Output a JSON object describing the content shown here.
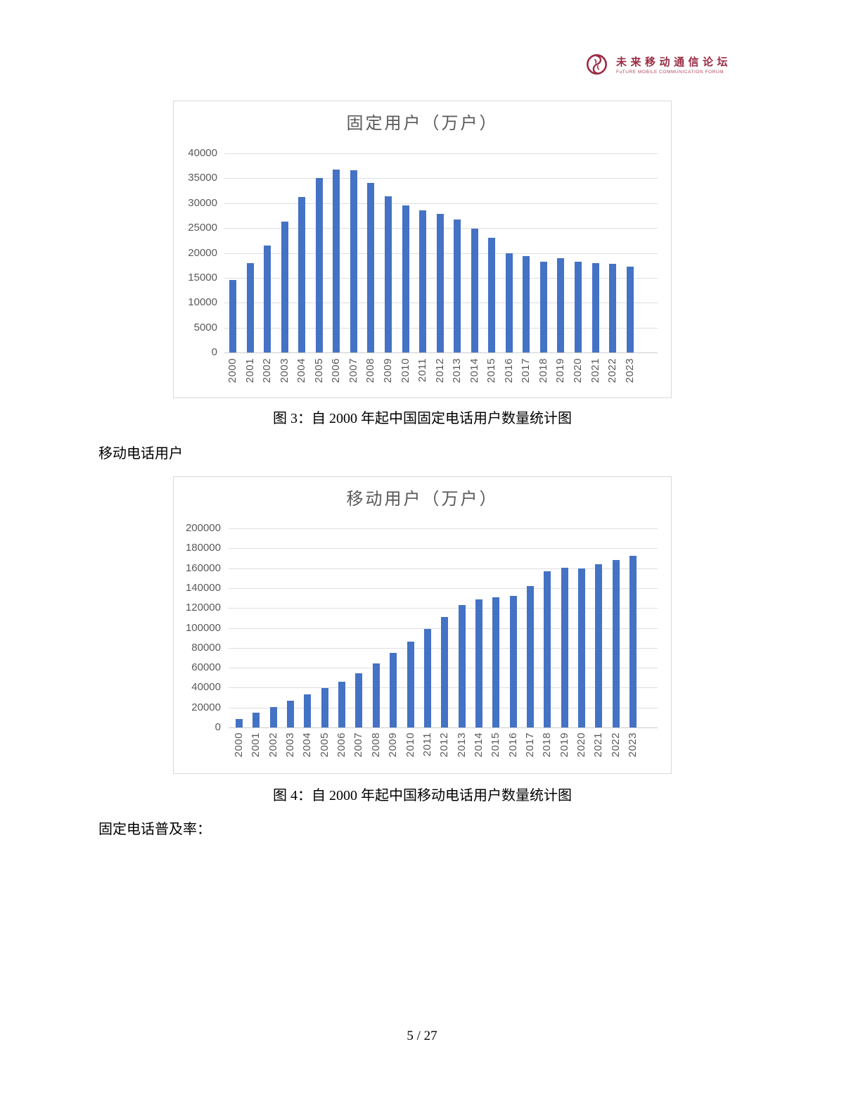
{
  "page": {
    "page_number": "5 / 27"
  },
  "header": {
    "logo": {
      "icon": "forum-logo-icon",
      "name_cn": "未来移动通信论坛",
      "name_en": "FuTURE MOBILE COMMUNICATION FORUM",
      "brand_color": "#9b2b43"
    }
  },
  "body": {
    "caption_fig3": "图 3：自 2000 年起中国固定电话用户数量统计图",
    "section_label_mobile": "移动电话用户",
    "caption_fig4": "图 4：自 2000 年起中国移动电话用户数量统计图",
    "section_label_fixed_rate": "固定电话普及率："
  },
  "chart_data": [
    {
      "type": "bar",
      "title": "固定用户（万户）",
      "xlabel": "",
      "ylabel": "",
      "categories": [
        "2000",
        "2001",
        "2002",
        "2003",
        "2004",
        "2005",
        "2006",
        "2007",
        "2008",
        "2009",
        "2010",
        "2011",
        "2012",
        "2013",
        "2014",
        "2015",
        "2016",
        "2017",
        "2018",
        "2019",
        "2020",
        "2021",
        "2022",
        "2023"
      ],
      "values": [
        14500,
        18000,
        21500,
        26300,
        31200,
        35000,
        36800,
        36600,
        34000,
        31400,
        29500,
        28500,
        27800,
        26700,
        24900,
        23100,
        20000,
        19400,
        18200,
        19000,
        18200,
        18000,
        17800,
        17300
      ],
      "ylim": [
        0,
        40000
      ],
      "yticks": [
        0,
        5000,
        10000,
        15000,
        20000,
        25000,
        30000,
        35000,
        40000
      ],
      "bar_color": "#4472C4",
      "grid": true,
      "grid_color": "#dedede",
      "legend_position": "none"
    },
    {
      "type": "bar",
      "title": "移动用户（万户）",
      "xlabel": "",
      "ylabel": "",
      "categories": [
        "2000",
        "2001",
        "2002",
        "2003",
        "2004",
        "2005",
        "2006",
        "2007",
        "2008",
        "2009",
        "2010",
        "2011",
        "2012",
        "2013",
        "2014",
        "2015",
        "2016",
        "2017",
        "2018",
        "2019",
        "2020",
        "2021",
        "2022",
        "2023"
      ],
      "values": [
        8500,
        14500,
        20600,
        27000,
        33500,
        39300,
        46100,
        54700,
        64100,
        74700,
        85900,
        98600,
        111200,
        122900,
        128600,
        130600,
        132200,
        141700,
        156600,
        160100,
        159400,
        164300,
        168300,
        172300
      ],
      "ylim": [
        0,
        200000
      ],
      "yticks": [
        0,
        20000,
        40000,
        60000,
        80000,
        100000,
        120000,
        140000,
        160000,
        180000,
        200000
      ],
      "bar_color": "#4472C4",
      "grid": true,
      "grid_color": "#dedede",
      "legend_position": "none"
    }
  ]
}
